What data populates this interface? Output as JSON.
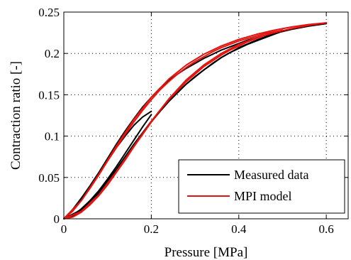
{
  "chart_data": {
    "type": "line",
    "title": "",
    "xlabel": "Pressure [MPa]",
    "ylabel": "Contraction ratio [-]",
    "xlim": [
      0,
      0.65
    ],
    "ylim": [
      0,
      0.25
    ],
    "xticks": [
      0,
      0.2,
      0.4,
      0.6
    ],
    "xtick_labels": [
      "0",
      "0.2",
      "0.4",
      "0.6"
    ],
    "yticks": [
      0,
      0.05,
      0.1,
      0.15,
      0.2,
      0.25
    ],
    "ytick_labels": [
      "0",
      "0.05",
      "0.1",
      "0.15",
      "0.2",
      "0.25"
    ],
    "grid": true,
    "legend_position": "bottom-right",
    "series": [
      {
        "name": "Measured data",
        "color": "#000000",
        "curves": [
          {
            "x": [
              0,
              0.02,
              0.04,
              0.06,
              0.08,
              0.1,
              0.12,
              0.14,
              0.16,
              0.18,
              0.2,
              0.22,
              0.24,
              0.26,
              0.28,
              0.3,
              0.32,
              0.34,
              0.36,
              0.38,
              0.4,
              0.42,
              0.44,
              0.46,
              0.48,
              0.5
            ],
            "y": [
              0,
              0.003,
              0.01,
              0.019,
              0.03,
              0.043,
              0.058,
              0.073,
              0.088,
              0.103,
              0.117,
              0.13,
              0.142,
              0.153,
              0.163,
              0.172,
              0.18,
              0.188,
              0.195,
              0.201,
              0.206,
              0.211,
              0.215,
              0.219,
              0.223,
              0.227
            ]
          },
          {
            "x": [
              0.5,
              0.48,
              0.46,
              0.44,
              0.42,
              0.4,
              0.38,
              0.36,
              0.34,
              0.32,
              0.3,
              0.28,
              0.26,
              0.24,
              0.22,
              0.2,
              0.18,
              0.16,
              0.14,
              0.12,
              0.1,
              0.08,
              0.06,
              0.04,
              0.02,
              0
            ],
            "y": [
              0.227,
              0.225,
              0.222,
              0.219,
              0.216,
              0.212,
              0.208,
              0.204,
              0.199,
              0.194,
              0.188,
              0.182,
              0.175,
              0.167,
              0.158,
              0.147,
              0.135,
              0.121,
              0.106,
              0.09,
              0.073,
              0.056,
              0.04,
              0.025,
              0.011,
              0
            ]
          },
          {
            "x": [
              0,
              0.02,
              0.04,
              0.06,
              0.08,
              0.1,
              0.12,
              0.14,
              0.16,
              0.18,
              0.2
            ],
            "y": [
              0,
              0.004,
              0.012,
              0.022,
              0.034,
              0.048,
              0.063,
              0.079,
              0.095,
              0.111,
              0.126
            ]
          },
          {
            "x": [
              0.2,
              0.18,
              0.16,
              0.14,
              0.12,
              0.1,
              0.08,
              0.06,
              0.04,
              0.02,
              0
            ],
            "y": [
              0.13,
              0.123,
              0.113,
              0.1,
              0.086,
              0.07,
              0.054,
              0.038,
              0.024,
              0.011,
              0
            ]
          },
          {
            "x": [
              0,
              0.04,
              0.08,
              0.12,
              0.16,
              0.2,
              0.24,
              0.28,
              0.32,
              0.36,
              0.4,
              0.44,
              0.48,
              0.52,
              0.56,
              0.6
            ],
            "y": [
              0,
              0.011,
              0.032,
              0.06,
              0.09,
              0.118,
              0.142,
              0.163,
              0.18,
              0.195,
              0.207,
              0.216,
              0.224,
              0.229,
              0.233,
              0.236
            ]
          }
        ]
      },
      {
        "name": "MPI model",
        "color": "#e3130f",
        "curves": [
          {
            "x": [
              0,
              0.02,
              0.04,
              0.06,
              0.08,
              0.1,
              0.12,
              0.14,
              0.16,
              0.18,
              0.2,
              0.22,
              0.24,
              0.26,
              0.28,
              0.3,
              0.32,
              0.34,
              0.36,
              0.38,
              0.4,
              0.42,
              0.44,
              0.46,
              0.48,
              0.5
            ],
            "y": [
              0,
              0.002,
              0.008,
              0.017,
              0.028,
              0.041,
              0.056,
              0.071,
              0.087,
              0.102,
              0.117,
              0.131,
              0.144,
              0.155,
              0.166,
              0.175,
              0.184,
              0.191,
              0.198,
              0.204,
              0.209,
              0.214,
              0.218,
              0.222,
              0.225,
              0.228
            ]
          },
          {
            "x": [
              0.5,
              0.48,
              0.46,
              0.44,
              0.42,
              0.4,
              0.38,
              0.36,
              0.34,
              0.32,
              0.3,
              0.28,
              0.26,
              0.24,
              0.22,
              0.2,
              0.18,
              0.16,
              0.14,
              0.12,
              0.1,
              0.08,
              0.06,
              0.04,
              0.02,
              0
            ],
            "y": [
              0.228,
              0.226,
              0.224,
              0.221,
              0.218,
              0.215,
              0.211,
              0.207,
              0.202,
              0.196,
              0.19,
              0.183,
              0.175,
              0.166,
              0.156,
              0.144,
              0.131,
              0.117,
              0.102,
              0.086,
              0.07,
              0.053,
              0.037,
              0.022,
              0.009,
              0
            ]
          },
          {
            "x": [
              0,
              0.04,
              0.08,
              0.12,
              0.16,
              0.2,
              0.24,
              0.28,
              0.32,
              0.36,
              0.4,
              0.44,
              0.48,
              0.52,
              0.56,
              0.6
            ],
            "y": [
              0,
              0.009,
              0.029,
              0.057,
              0.088,
              0.118,
              0.145,
              0.168,
              0.186,
              0.2,
              0.211,
              0.219,
              0.225,
              0.23,
              0.234,
              0.237
            ]
          },
          {
            "x": [
              0.6,
              0.56,
              0.52,
              0.48,
              0.44,
              0.4,
              0.36,
              0.32,
              0.28,
              0.24,
              0.2,
              0.16,
              0.12,
              0.08,
              0.04,
              0
            ],
            "y": [
              0.237,
              0.235,
              0.232,
              0.228,
              0.223,
              0.217,
              0.209,
              0.199,
              0.186,
              0.169,
              0.147,
              0.12,
              0.088,
              0.054,
              0.022,
              0
            ]
          }
        ]
      }
    ]
  }
}
